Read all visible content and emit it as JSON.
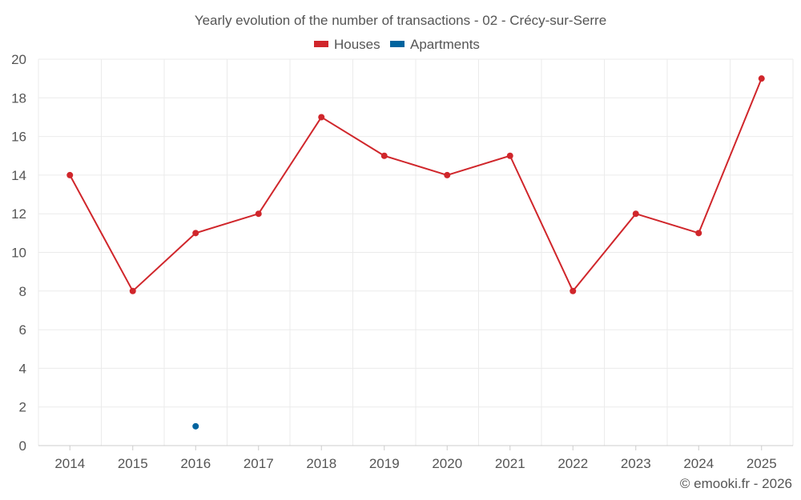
{
  "chart_data": {
    "type": "line",
    "title": "Yearly evolution of the number of transactions - 02 - Crécy-sur-Serre",
    "categories": [
      "2014",
      "2015",
      "2016",
      "2017",
      "2018",
      "2019",
      "2020",
      "2021",
      "2022",
      "2023",
      "2024",
      "2025"
    ],
    "ylim": [
      0,
      20
    ],
    "yticks": [
      0,
      2,
      4,
      6,
      8,
      10,
      12,
      14,
      16,
      18,
      20
    ],
    "grid": true,
    "legend_position": "top-center",
    "series": [
      {
        "name": "Houses",
        "color": "#d0262b",
        "values": [
          14,
          8,
          11,
          12,
          17,
          15,
          14,
          15,
          8,
          12,
          11,
          19
        ]
      },
      {
        "name": "Apartments",
        "color": "#00649f",
        "values": [
          null,
          null,
          1,
          null,
          null,
          null,
          null,
          null,
          null,
          null,
          null,
          null
        ]
      }
    ],
    "credit": "© emooki.fr - 2026"
  }
}
